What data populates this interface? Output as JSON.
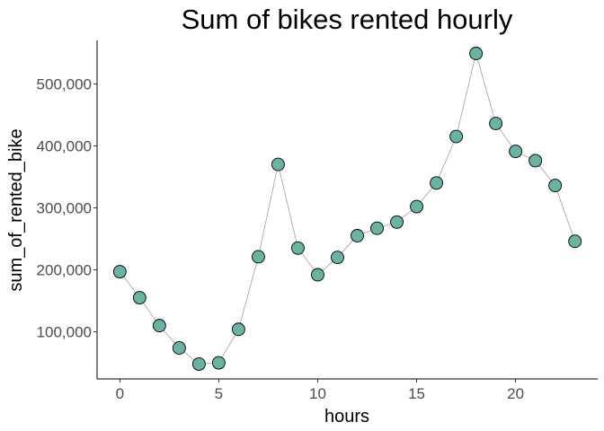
{
  "chart_data": {
    "type": "line",
    "title": "Sum of bikes rented hourly",
    "xlabel": "hours",
    "ylabel": "sum_of_rented_bike",
    "xlim": [
      -1.15,
      24.15
    ],
    "ylim": [
      24000,
      570000
    ],
    "x_ticks": [
      0,
      5,
      10,
      15,
      20
    ],
    "x_tick_labels": [
      "0",
      "5",
      "10",
      "15",
      "20"
    ],
    "y_ticks": [
      100000,
      200000,
      300000,
      400000,
      500000
    ],
    "y_tick_labels": [
      "100,000",
      "200,000",
      "300,000",
      "400,000",
      "500,000"
    ],
    "grid": false,
    "legend": "none",
    "series": [
      {
        "x": [
          0,
          1,
          2,
          3,
          4,
          5,
          6,
          7,
          8,
          9,
          10,
          11,
          12,
          13,
          14,
          15,
          16,
          17,
          18,
          19,
          20,
          21,
          22,
          23
        ],
        "values": [
          197000,
          155000,
          110000,
          74000,
          48000,
          50000,
          104000,
          221000,
          370000,
          235000,
          192000,
          220000,
          255000,
          267000,
          277000,
          302000,
          340000,
          415000,
          549000,
          436000,
          391000,
          376000,
          336000,
          246000
        ]
      }
    ],
    "colors": {
      "point_fill": "#69b3a2",
      "point_stroke": "#000000",
      "line": "#a0a0a0",
      "axis": "#000000",
      "tick_label": "#4d4d4d"
    }
  }
}
